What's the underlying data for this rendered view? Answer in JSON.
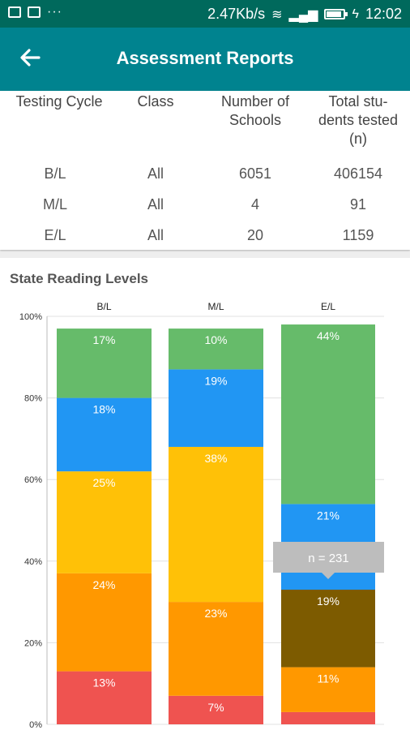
{
  "status_bar": {
    "net_speed": "2.47Kb/s",
    "time": "12:02",
    "dots": "···",
    "icons": [
      "image-icon",
      "app-icon",
      "wifi-icon",
      "signal-icon",
      "battery-icon",
      "charging-icon"
    ]
  },
  "app_bar": {
    "title": "Assessment Reports",
    "back_icon": "arrow-left-icon",
    "color": "#00838f"
  },
  "table": {
    "headers": [
      "Testing Cycle",
      "Class",
      "Number of Schools",
      "Total students tested (n)"
    ],
    "rows": [
      [
        "B/L",
        "All",
        "6051",
        "406154"
      ],
      [
        "M/L",
        "All",
        "4",
        "91"
      ],
      [
        "E/L",
        "All",
        "20",
        "1159"
      ]
    ]
  },
  "chart_title": "State Reading Levels",
  "tooltip": {
    "text": "n = 231"
  },
  "chart_data": {
    "type": "bar",
    "stacked": true,
    "categories": [
      "B/L",
      "M/L",
      "E/L"
    ],
    "ylim": [
      0,
      100
    ],
    "y_ticks": [
      "0%",
      "20%",
      "40%",
      "60%",
      "80%",
      "100%"
    ],
    "series": [
      {
        "color": "#ef5350",
        "values": [
          13,
          7,
          3
        ],
        "labels": [
          "13%",
          "7%",
          ""
        ]
      },
      {
        "color": "#ff9800",
        "values": [
          24,
          23,
          11
        ],
        "labels": [
          "24%",
          "23%",
          "11%"
        ]
      },
      {
        "color": "#ffc107",
        "values": [
          25,
          38,
          0
        ],
        "labels": [
          "25%",
          "38%",
          ""
        ]
      },
      {
        "color": "#7d5b00",
        "values": [
          0,
          0,
          19
        ],
        "labels": [
          "",
          "",
          "19%"
        ]
      },
      {
        "color": "#2196f3",
        "values": [
          18,
          19,
          21
        ],
        "labels": [
          "18%",
          "19%",
          "21%"
        ]
      },
      {
        "color": "#66bb6a",
        "values": [
          17,
          10,
          44
        ],
        "labels": [
          "17%",
          "10%",
          "44%"
        ]
      }
    ]
  }
}
